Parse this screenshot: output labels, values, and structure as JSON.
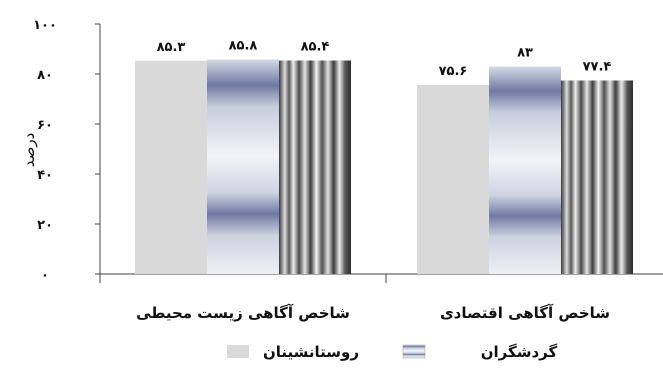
{
  "chart_data": {
    "type": "bar",
    "title": "",
    "xlabel": "",
    "ylabel": "درصد",
    "ylim": [
      0,
      100
    ],
    "yticks": [
      "۰",
      "۲۰",
      "۴۰",
      "۶۰",
      "۸۰",
      "۱۰۰"
    ],
    "categories": [
      "شاخص آگاهی زیست محیطی",
      "شاخص آگاهی اقتصادی"
    ],
    "series": [
      {
        "name": "روستانشینان",
        "values": [
          85.3,
          75.6
        ],
        "labels": [
          "۸۵.۳",
          "۷۵.۶"
        ],
        "style": "solid",
        "color": "#d9d9d9"
      },
      {
        "name": "",
        "values": [
          85.8,
          83
        ],
        "labels": [
          "۸۵.۸",
          "۸۳"
        ],
        "style": "horizontal-gradient",
        "color": "#8a93b8"
      },
      {
        "name": "گردشگران",
        "values": [
          85.4,
          77.4
        ],
        "labels": [
          "۸۵.۴",
          "۷۷.۴"
        ],
        "style": "vertical-stripes",
        "color": "#555555"
      }
    ],
    "grid": false,
    "legend_position": "bottom"
  }
}
